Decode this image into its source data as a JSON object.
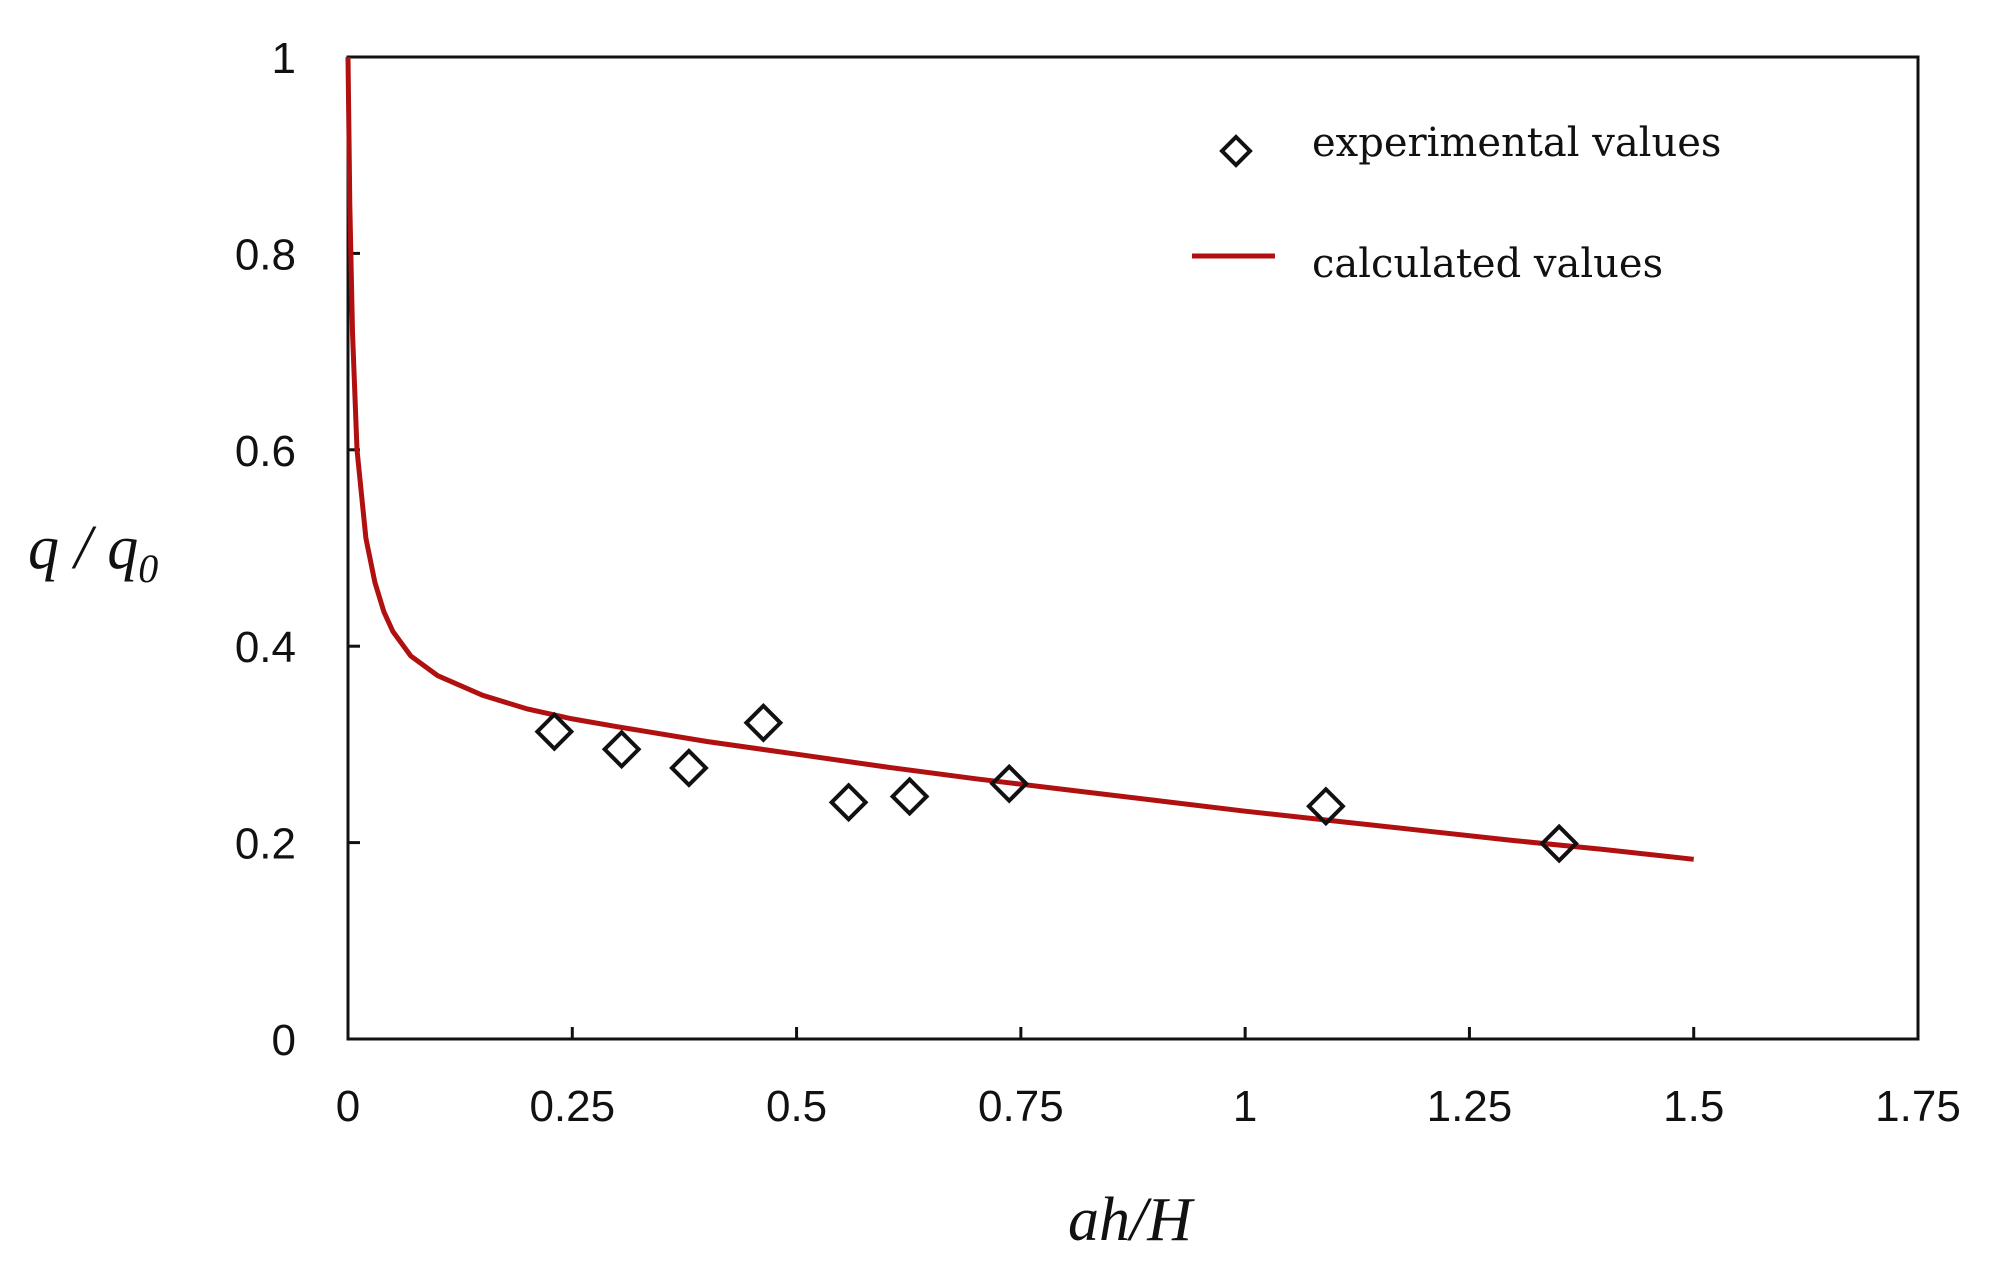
{
  "chart_data": {
    "type": "scatter",
    "title": "",
    "xlabel": "ah/H",
    "ylabel": "q / q0",
    "ylabel_parts": {
      "main": "q / q",
      "sub": "0"
    },
    "xlim": [
      0,
      1.75
    ],
    "ylim": [
      0,
      1
    ],
    "xticks": [
      0,
      0.25,
      0.5,
      0.75,
      1,
      1.25,
      1.5,
      1.75
    ],
    "yticks": [
      0,
      0.2,
      0.4,
      0.6,
      0.8,
      1
    ],
    "xtick_labels": [
      "0",
      "0.25",
      "0.5",
      "0.75",
      "1",
      "1.25",
      "1.5",
      "1.75"
    ],
    "ytick_labels": [
      "0",
      "0.2",
      "0.4",
      "0.6",
      "0.8",
      "1"
    ],
    "grid": false,
    "legend_position": "top-right",
    "series": [
      {
        "name": "experimental values",
        "kind": "scatter",
        "marker": "diamond",
        "color": "#111111",
        "x": [
          0.23,
          0.305,
          0.38,
          0.463,
          0.558,
          0.626,
          0.737,
          1.09,
          1.35
        ],
        "y": [
          0.313,
          0.295,
          0.276,
          0.322,
          0.241,
          0.247,
          0.26,
          0.237,
          0.199
        ]
      },
      {
        "name": "calculated values",
        "kind": "line",
        "color": "#b01010",
        "x": [
          0.0,
          0.002,
          0.005,
          0.01,
          0.02,
          0.03,
          0.04,
          0.05,
          0.07,
          0.1,
          0.15,
          0.2,
          0.25,
          0.3,
          0.4,
          0.5,
          0.6,
          0.7,
          0.8,
          0.9,
          1.0,
          1.1,
          1.2,
          1.3,
          1.4,
          1.5
        ],
        "y": [
          1.0,
          0.85,
          0.72,
          0.6,
          0.51,
          0.465,
          0.435,
          0.415,
          0.39,
          0.37,
          0.35,
          0.336,
          0.326,
          0.318,
          0.303,
          0.29,
          0.277,
          0.265,
          0.254,
          0.243,
          0.232,
          0.222,
          0.212,
          0.202,
          0.193,
          0.183
        ]
      }
    ]
  }
}
